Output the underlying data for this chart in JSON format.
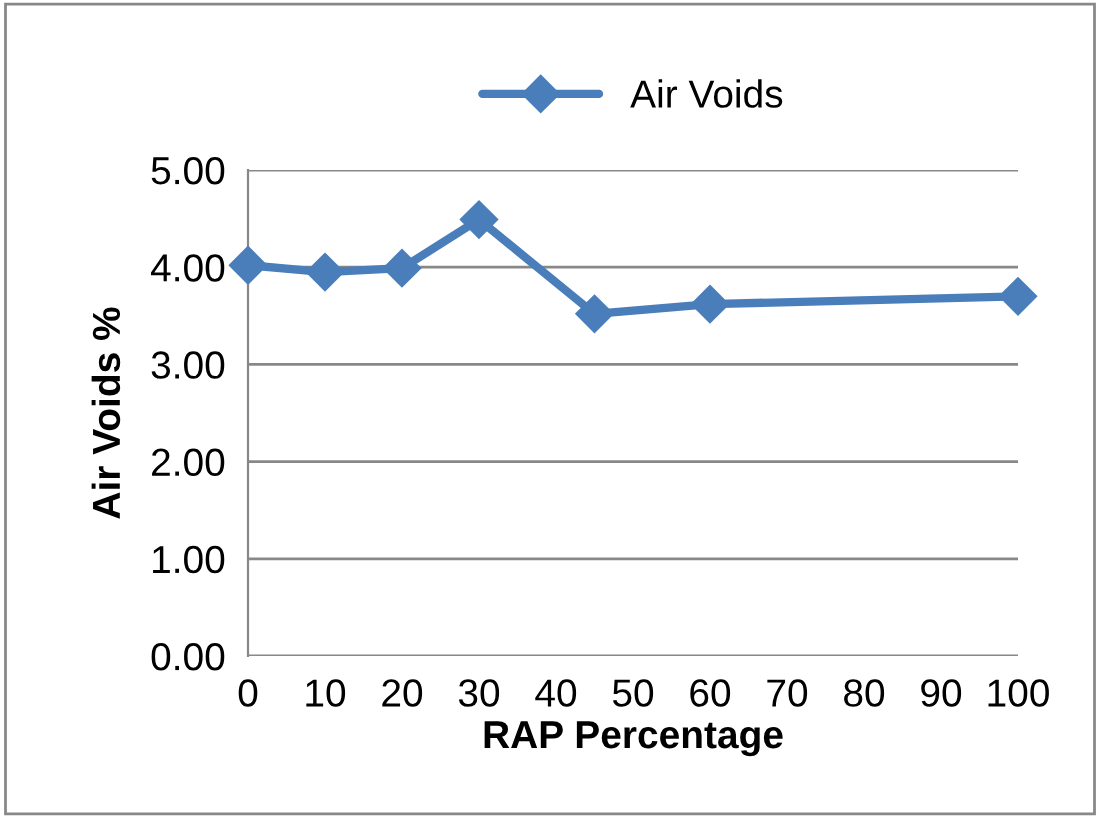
{
  "chart_data": {
    "type": "line",
    "xlabel": "RAP Percentage",
    "ylabel": "Air Voids %",
    "x": [
      0,
      10,
      20,
      30,
      45,
      60,
      100
    ],
    "series": [
      {
        "name": "Air Voids",
        "color": "#4a7ebb",
        "values": [
          4.02,
          3.95,
          3.99,
          4.49,
          3.52,
          3.62,
          3.7
        ]
      }
    ],
    "xlim": [
      0,
      100
    ],
    "xticks": [
      0,
      10,
      20,
      30,
      40,
      50,
      60,
      70,
      80,
      90,
      100
    ],
    "ylim": [
      0,
      5
    ],
    "yticks": [
      {
        "value": 0,
        "label": "0.00"
      },
      {
        "value": 1,
        "label": "1.00"
      },
      {
        "value": 2,
        "label": "2.00"
      },
      {
        "value": 3,
        "label": "3.00"
      },
      {
        "value": 4,
        "label": "4.00"
      },
      {
        "value": 5,
        "label": "5.00"
      }
    ],
    "grid": "y",
    "legend": "top",
    "marker": "diamond",
    "line_style": "solid"
  }
}
